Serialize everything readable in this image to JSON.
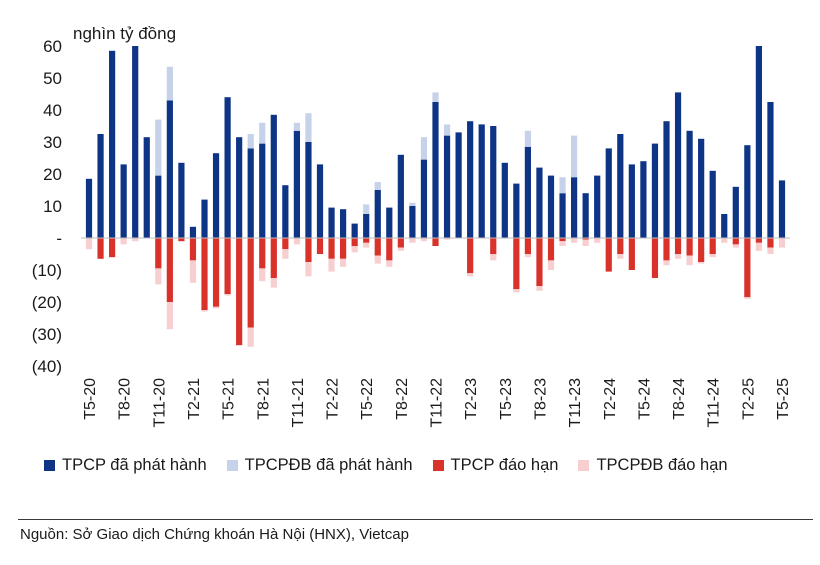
{
  "chart_data": {
    "type": "bar",
    "stacked": true,
    "unit_label": "nghìn tỷ đồng",
    "ylim": [
      -40,
      60
    ],
    "y_ticks": [
      {
        "value": 60,
        "label": "60"
      },
      {
        "value": 50,
        "label": "50"
      },
      {
        "value": 40,
        "label": "40"
      },
      {
        "value": 30,
        "label": "30"
      },
      {
        "value": 20,
        "label": "20"
      },
      {
        "value": 10,
        "label": "10"
      },
      {
        "value": 0,
        "label": "-"
      },
      {
        "value": -10,
        "label": "(10)"
      },
      {
        "value": -20,
        "label": "(20)"
      },
      {
        "value": -30,
        "label": "(30)"
      },
      {
        "value": -40,
        "label": "(40)"
      }
    ],
    "categories": [
      "T5-20",
      "T6-20",
      "T7-20",
      "T8-20",
      "T9-20",
      "T10-20",
      "T11-20",
      "T12-20",
      "T1-21",
      "T2-21",
      "T3-21",
      "T4-21",
      "T5-21",
      "T6-21",
      "T7-21",
      "T8-21",
      "T9-21",
      "T10-21",
      "T11-21",
      "T12-21",
      "T1-22",
      "T2-22",
      "T3-22",
      "T4-22",
      "T5-22",
      "T6-22",
      "T7-22",
      "T8-22",
      "T9-22",
      "T10-22",
      "T11-22",
      "T12-22",
      "T1-23",
      "T2-23",
      "T3-23",
      "T4-23",
      "T5-23",
      "T6-23",
      "T7-23",
      "T8-23",
      "T9-23",
      "T10-23",
      "T11-23",
      "T12-23",
      "T1-24",
      "T2-24",
      "T3-24",
      "T4-24",
      "T5-24",
      "T6-24",
      "T7-24",
      "T8-24",
      "T9-24",
      "T10-24",
      "T11-24",
      "T12-24",
      "T1-25",
      "T2-25",
      "T3-25",
      "T4-25",
      "T5-25"
    ],
    "x_tick_labels": [
      "T5-20",
      "T8-20",
      "T11-20",
      "T2-21",
      "T5-21",
      "T8-21",
      "T11-21",
      "T2-22",
      "T5-22",
      "T8-22",
      "T11-22",
      "T2-23",
      "T5-23",
      "T8-23",
      "T11-23",
      "T2-24",
      "T5-24",
      "T8-24",
      "T11-24",
      "T2-25",
      "T5-25"
    ],
    "series": [
      {
        "name": "TPCP đã phát hành",
        "color": "#0d3485",
        "stack": "positive",
        "values": [
          18.5,
          32.5,
          58.5,
          23,
          60,
          31.5,
          19.5,
          43,
          23.5,
          3.5,
          12,
          26.5,
          44,
          31.5,
          28,
          29.5,
          38.5,
          16.5,
          33.5,
          30,
          23,
          9.5,
          9,
          4.5,
          7.5,
          15,
          9.5,
          26,
          10,
          24.5,
          42.5,
          32,
          33,
          36.5,
          35.5,
          35,
          23.5,
          17,
          28.5,
          22,
          19.5,
          14,
          19,
          14,
          19.5,
          28,
          32.5,
          23,
          24,
          29.5,
          36.5,
          45.5,
          33.5,
          31,
          21,
          7.5,
          16,
          29,
          60,
          42.5,
          18
        ]
      },
      {
        "name": "TPCPĐB đã phát hành",
        "color": "#c6d1ea",
        "stack": "positive",
        "values": [
          0,
          0,
          0,
          0,
          0,
          0,
          17.5,
          10.5,
          0,
          0,
          0,
          0,
          0,
          0,
          4.5,
          6.5,
          0,
          0,
          2.5,
          9,
          0,
          0,
          0,
          0,
          3,
          2.5,
          0,
          0,
          1,
          7,
          3,
          3.5,
          0,
          0,
          0,
          0,
          0,
          0,
          5,
          0,
          0,
          5,
          13,
          0,
          0,
          0,
          0,
          0,
          0,
          0,
          0,
          0,
          0,
          0,
          0,
          0,
          0,
          0,
          0,
          0,
          0
        ]
      },
      {
        "name": "TPCP đáo hạn",
        "color": "#d9322b",
        "stack": "negative",
        "values": [
          0,
          -6.5,
          -6,
          0,
          0,
          0,
          -9.5,
          -20,
          -1,
          -7,
          -22.5,
          -21.5,
          -17.5,
          -33.5,
          -28,
          -9.5,
          -12.5,
          -3.5,
          0,
          -7.5,
          -5,
          -6.5,
          -6.5,
          -2.5,
          -1.5,
          -5.5,
          -7,
          -3,
          0,
          0,
          -2.5,
          0,
          0,
          -11,
          0,
          -5,
          0,
          -16,
          -5,
          -15,
          -7,
          -1,
          0,
          -0.5,
          0,
          -10.5,
          -5,
          -10,
          0,
          -12.5,
          -7,
          -5,
          -5.5,
          -7.5,
          -5,
          0,
          -2,
          -18.5,
          -1.5,
          -3,
          0
        ]
      },
      {
        "name": "TPCPĐB đáo hạn",
        "color": "#f7cfd1",
        "stack": "negative",
        "values": [
          -3.5,
          0,
          0,
          -2,
          -1,
          0,
          -5,
          -8.5,
          0,
          -7,
          -0.5,
          -0.5,
          -0.5,
          0,
          -6,
          -4,
          -3,
          -3,
          -2,
          -4.5,
          0,
          -4,
          -2.5,
          -2,
          -1.5,
          -2.5,
          -2,
          -1,
          -1.5,
          -1,
          0,
          -0.5,
          0,
          -1,
          0,
          -2,
          0,
          -1,
          -1,
          -1.5,
          -3,
          -1.5,
          -1.5,
          -2,
          -1.5,
          0,
          -1.5,
          0,
          0,
          0,
          -1.5,
          -1.5,
          -3,
          -0.5,
          -1,
          -1.5,
          -1,
          -0.5,
          -2.5,
          -2,
          -3
        ]
      }
    ]
  },
  "footer": {
    "source_text": "Nguồn: Sở Giao dịch Chứng khoán Hà Nội (HNX), Vietcap"
  }
}
